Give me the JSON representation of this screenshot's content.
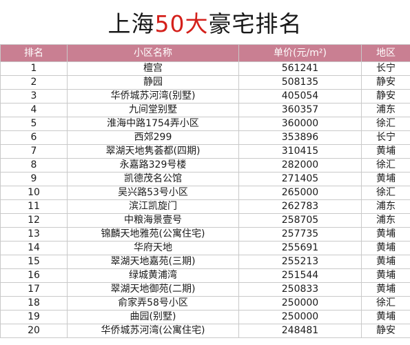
{
  "title": {
    "prefix": "上海",
    "accent": "50大",
    "suffix": "豪宅排名",
    "accent_color": "#d4201b"
  },
  "header_color": "#c97f92",
  "columns": {
    "rank": "排名",
    "name": "小区名称",
    "price": "单价(元/m²)",
    "district": "地区"
  },
  "rows": [
    {
      "rank": "1",
      "name": "檀宫",
      "price": "561241",
      "district": "长宁"
    },
    {
      "rank": "2",
      "name": "静园",
      "price": "508135",
      "district": "静安"
    },
    {
      "rank": "3",
      "name": "华侨城苏河湾(别墅)",
      "price": "405054",
      "district": "静安"
    },
    {
      "rank": "4",
      "name": "九间堂别墅",
      "price": "360357",
      "district": "浦东"
    },
    {
      "rank": "5",
      "name": "淮海中路1754弄小区",
      "price": "360000",
      "district": "徐汇"
    },
    {
      "rank": "6",
      "name": "西郊299",
      "price": "353896",
      "district": "长宁"
    },
    {
      "rank": "7",
      "name": "翠湖天地隽荟都(四期)",
      "price": "310415",
      "district": "黄埔"
    },
    {
      "rank": "8",
      "name": "永嘉路329号楼",
      "price": "282000",
      "district": "徐汇"
    },
    {
      "rank": "9",
      "name": "凯德茂名公馆",
      "price": "271405",
      "district": "黄埔"
    },
    {
      "rank": "10",
      "name": "吴兴路53号小区",
      "price": "265000",
      "district": "徐汇"
    },
    {
      "rank": "11",
      "name": "滨江凯旋门",
      "price": "262783",
      "district": "浦东"
    },
    {
      "rank": "12",
      "name": "中粮海景壹号",
      "price": "258705",
      "district": "浦东"
    },
    {
      "rank": "13",
      "name": "锦麟天地雅苑(公寓住宅)",
      "price": "257735",
      "district": "黄埔"
    },
    {
      "rank": "14",
      "name": "华府天地",
      "price": "255691",
      "district": "黄埔"
    },
    {
      "rank": "15",
      "name": "翠湖天地嘉苑(三期)",
      "price": "255213",
      "district": "黄埔"
    },
    {
      "rank": "16",
      "name": "绿城黄浦湾",
      "price": "251544",
      "district": "黄埔"
    },
    {
      "rank": "17",
      "name": "翠湖天地御苑(二期)",
      "price": "250833",
      "district": "黄埔"
    },
    {
      "rank": "18",
      "name": "俞家弄58号小区",
      "price": "250000",
      "district": "徐汇"
    },
    {
      "rank": "19",
      "name": "曲园(别墅)",
      "price": "250000",
      "district": "黄埔"
    },
    {
      "rank": "20",
      "name": "华侨城苏河湾(公寓住宅)",
      "price": "248481",
      "district": "静安"
    }
  ]
}
